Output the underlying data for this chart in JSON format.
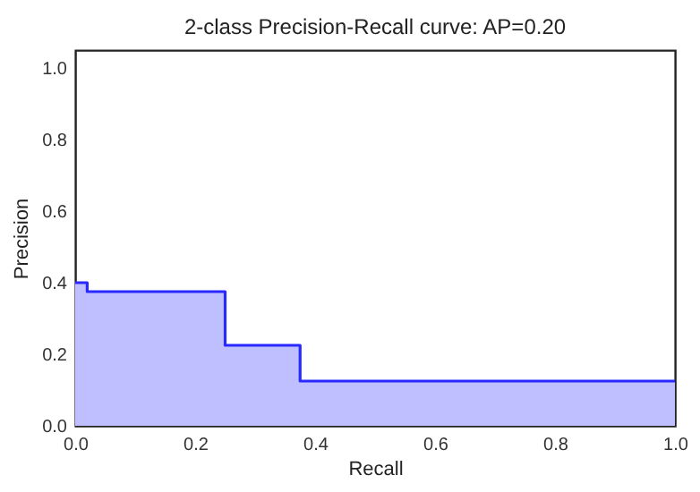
{
  "chart_data": {
    "type": "step",
    "title": "2-class Precision-Recall curve: AP=0.20",
    "xlabel": "Recall",
    "ylabel": "Precision",
    "x": [
      0,
      0.02,
      0.25,
      0.375,
      1.0
    ],
    "series": [
      {
        "type": "area",
        "color": "#bfbfff",
        "values": [
          0.4,
          0.375,
          0.225,
          0.125,
          0.125
        ]
      },
      {
        "color": "#2929ff",
        "values": [
          0.4,
          0.375,
          0.225,
          0.125,
          0.125
        ]
      }
    ],
    "xlim": [
      0,
      1
    ],
    "ylim": [
      0,
      1.05
    ],
    "xticks": [
      {
        "value": 0,
        "label": "0.0"
      },
      {
        "value": 0.2,
        "label": "0.2"
      },
      {
        "value": 0.4,
        "label": "0.4"
      },
      {
        "value": 0.6,
        "label": "0.6"
      },
      {
        "value": 0.8,
        "label": "0.8"
      },
      {
        "value": 1,
        "label": "1.0"
      }
    ],
    "yticks": [
      {
        "value": 0,
        "label": "0.0"
      },
      {
        "value": 0.2,
        "label": "0.2"
      },
      {
        "value": 0.4,
        "label": "0.4"
      },
      {
        "value": 0.6,
        "label": "0.6"
      },
      {
        "value": 0.8,
        "label": "0.8"
      },
      {
        "value": 1,
        "label": "1.0"
      }
    ],
    "grid": false
  }
}
